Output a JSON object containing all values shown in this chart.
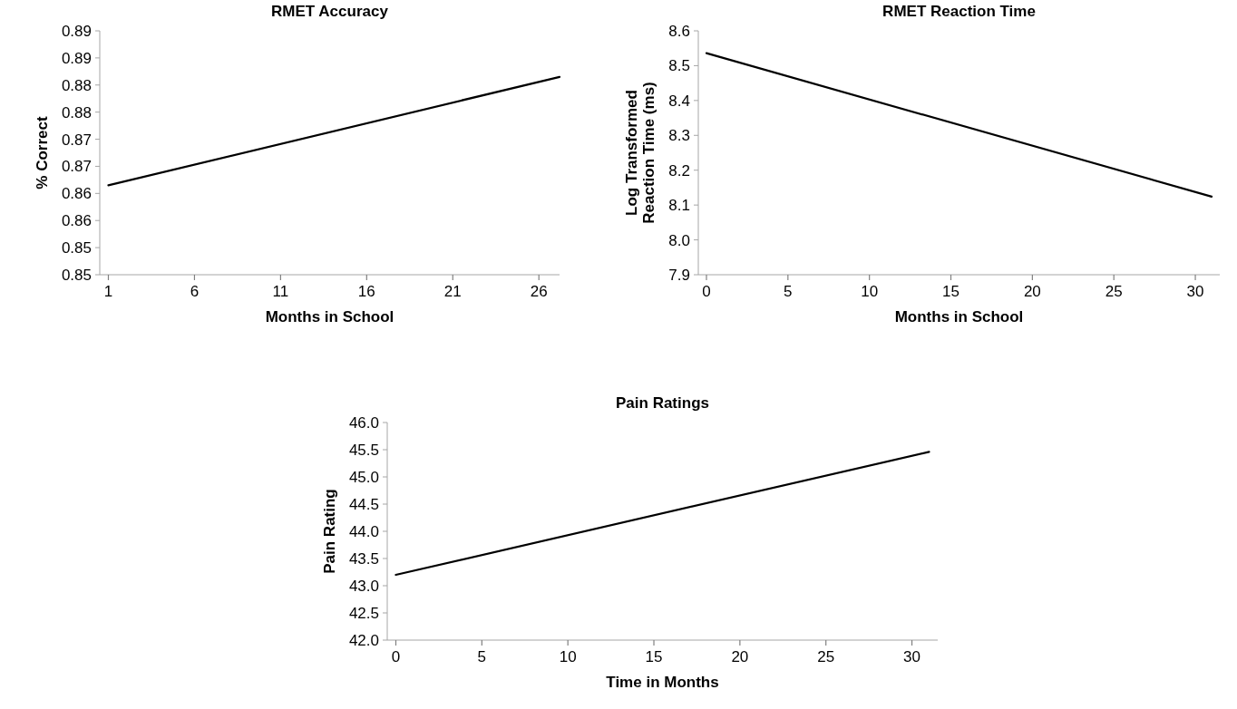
{
  "chart_data": [
    {
      "type": "line",
      "title": "RMET Accuracy",
      "xlabel": "Months in School",
      "ylabel": "% Correct",
      "series": [
        {
          "color": "#000000",
          "x": [
            1,
            27.2
          ],
          "values": [
            0.8665,
            0.8865
          ]
        }
      ],
      "xlim": [
        0.5,
        27.2
      ],
      "ylim": [
        0.85,
        0.895
      ],
      "xticks": [
        1,
        6,
        11,
        16,
        21,
        26
      ],
      "yticks": [
        {
          "value": 0.85,
          "label": "0.85"
        },
        {
          "value": 0.855,
          "label": "0.85"
        },
        {
          "value": 0.86,
          "label": "0.86"
        },
        {
          "value": 0.865,
          "label": "0.86"
        },
        {
          "value": 0.87,
          "label": "0.87"
        },
        {
          "value": 0.875,
          "label": "0.87"
        },
        {
          "value": 0.88,
          "label": "0.88"
        },
        {
          "value": 0.885,
          "label": "0.88"
        },
        {
          "value": 0.89,
          "label": "0.89"
        },
        {
          "value": 0.895,
          "label": "0.89"
        }
      ]
    },
    {
      "type": "line",
      "title": "RMET Reaction Time",
      "xlabel": "Months in School",
      "ylabel": "Log Transformed Reaction Time (ms)",
      "series": [
        {
          "color": "#000000",
          "x": [
            0,
            31
          ],
          "values": [
            8.536,
            8.124
          ]
        }
      ],
      "xlim": [
        -0.5,
        31.5
      ],
      "ylim": [
        7.9,
        8.6
      ],
      "xticks": [
        0,
        5,
        10,
        15,
        20,
        25,
        30
      ],
      "yticks": [
        {
          "value": 7.9,
          "label": "7.9"
        },
        {
          "value": 8.0,
          "label": "8.0"
        },
        8.1,
        8.2,
        8.3,
        8.4,
        8.5,
        8.6
      ]
    },
    {
      "type": "line",
      "title": "Pain Ratings",
      "xlabel": "Time in Months",
      "ylabel": "Pain Rating",
      "series": [
        {
          "color": "#000000",
          "x": [
            0,
            31
          ],
          "values": [
            43.2,
            45.46
          ]
        }
      ],
      "xlim": [
        -0.5,
        31.5
      ],
      "ylim": [
        42,
        46
      ],
      "xticks": [
        0,
        5,
        10,
        15,
        20,
        25,
        30
      ],
      "yticks": [
        {
          "value": 42,
          "label": "42.0"
        },
        42.5,
        {
          "value": 43,
          "label": "43.0"
        },
        43.5,
        {
          "value": 44,
          "label": "44.0"
        },
        44.5,
        {
          "value": 45,
          "label": "45.0"
        },
        45.5,
        {
          "value": 46,
          "label": "46.0"
        }
      ]
    }
  ]
}
